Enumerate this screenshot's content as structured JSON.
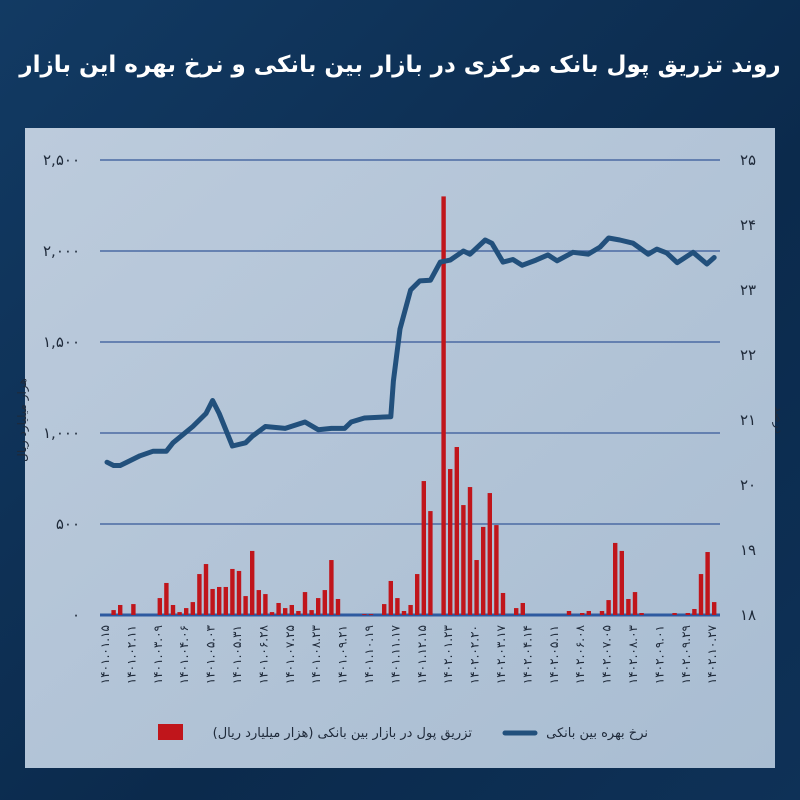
{
  "title": "روند تزریق پول بانک مرکزی در بازار بین بانکی و نرخ بهره این بازار",
  "chart_data": {
    "type": "bar+line",
    "title": "روند تزریق پول بانک مرکزی در بازار بین بانکی و نرخ بهره این بازار",
    "left_axis": {
      "label": "هزار میلیارد ریال",
      "range": [
        0,
        2500
      ],
      "ticks": [
        0,
        500,
        1000,
        1500,
        2000,
        2500
      ],
      "tick_labels": [
        "۰",
        "۵۰۰",
        "۱,۰۰۰",
        "۱,۵۰۰",
        "۲,۰۰۰",
        "۲,۵۰۰"
      ]
    },
    "right_axis": {
      "label": "درصد",
      "range": [
        18,
        25
      ],
      "ticks": [
        18,
        19,
        20,
        21,
        22,
        23,
        24,
        25
      ],
      "tick_labels": [
        "۱۸",
        "۱۹",
        "۲۰",
        "۲۱",
        "۲۲",
        "۲۳",
        "۲۴",
        "۲۵"
      ]
    },
    "x_tick_every": 4,
    "x_tick_labels": [
      "۱۴۰۱.۰۱.۱۵",
      "۱۴۰۱.۰۲.۱۱",
      "۱۴۰۱.۰۳.۰۹",
      "۱۴۰۱.۰۴.۰۶",
      "۱۴۰۱.۰۵.۰۳",
      "۱۴۰۱.۰۵.۳۱",
      "۱۴۰۱.۰۶.۲۸",
      "۱۴۰۱.۰۷.۲۵",
      "۱۴۰۱.۰۸.۲۳",
      "۱۴۰۱.۰۹.۲۱",
      "۱۴۰۱.۱۰.۱۹",
      "۱۴۰۱.۱۱.۱۷",
      "۱۴۰۱.۱۲.۱۵",
      "۱۴۰۲.۰۱.۲۳",
      "۱۴۰۲.۰۲.۲۰",
      "۱۴۰۲.۰۳.۱۷",
      "۱۴۰۲.۰۴.۱۴",
      "۱۴۰۲.۰۵.۱۱",
      "۱۴۰۲.۰۶.۰۸",
      "۱۴۰۲.۰۷.۰۵",
      "۱۴۰۲.۰۸.۰۳",
      "۱۴۰۲.۰۹.۰۱",
      "۱۴۰۲.۰۹.۲۹",
      "۱۴۰۲.۱۰.۲۷"
    ],
    "grid": true,
    "legend_placement": "bottom",
    "series": [
      {
        "name": "تزریق پول در بازار بین بانکی (هزار میلیارد ریال)",
        "type": "bar",
        "axis": "left",
        "color": "#c0151b",
        "values": [
          0,
          27,
          55,
          0,
          60,
          0,
          0,
          0,
          93,
          176,
          55,
          16,
          38,
          71,
          225,
          280,
          143,
          154,
          154,
          253,
          242,
          104,
          352,
          137,
          115,
          16,
          66,
          38,
          55,
          22,
          126,
          27,
          93,
          137,
          302,
          88,
          0,
          0,
          0,
          5,
          5,
          0,
          60,
          187,
          93,
          22,
          55,
          225,
          736,
          571,
          0,
          2300,
          802,
          923,
          604,
          703,
          302,
          484,
          670,
          494,
          121,
          0,
          38,
          66,
          0,
          0,
          0,
          0,
          0,
          0,
          22,
          0,
          11,
          22,
          0,
          22,
          82,
          396,
          352,
          88,
          126,
          11,
          0,
          0,
          0,
          0,
          11,
          0,
          11,
          33,
          225,
          346,
          71
        ]
      },
      {
        "name": "نرخ بهره بین بانکی",
        "type": "line",
        "axis": "right",
        "color": "#22507c",
        "points": [
          [
            0,
            20.35
          ],
          [
            1,
            20.3
          ],
          [
            2,
            20.3
          ],
          [
            5,
            20.45
          ],
          [
            7,
            20.52
          ],
          [
            9,
            20.52
          ],
          [
            10,
            20.65
          ],
          [
            13,
            20.9
          ],
          [
            15,
            21.1
          ],
          [
            16,
            21.3
          ],
          [
            17,
            21.1
          ],
          [
            19,
            20.6
          ],
          [
            21,
            20.65
          ],
          [
            22,
            20.75
          ],
          [
            24,
            20.9
          ],
          [
            27,
            20.87
          ],
          [
            30,
            20.97
          ],
          [
            32,
            20.85
          ],
          [
            34,
            20.87
          ],
          [
            36,
            20.87
          ],
          [
            37,
            20.97
          ],
          [
            39,
            21.03
          ],
          [
            43,
            21.05
          ],
          [
            43.4,
            21.6
          ],
          [
            44.4,
            22.4
          ],
          [
            46,
            23.0
          ],
          [
            47.4,
            23.14
          ],
          [
            49,
            23.15
          ],
          [
            50.5,
            23.43
          ],
          [
            52,
            23.46
          ],
          [
            54,
            23.6
          ],
          [
            55,
            23.55
          ],
          [
            57.3,
            23.77
          ],
          [
            58.3,
            23.72
          ],
          [
            60,
            23.43
          ],
          [
            61.5,
            23.47
          ],
          [
            62.9,
            23.38
          ],
          [
            65,
            23.46
          ],
          [
            66.8,
            23.54
          ],
          [
            68.2,
            23.45
          ],
          [
            70.6,
            23.58
          ],
          [
            72.9,
            23.55
          ],
          [
            74.7,
            23.66
          ],
          [
            76,
            23.8
          ],
          [
            77.7,
            23.77
          ],
          [
            79.7,
            23.72
          ],
          [
            82,
            23.55
          ],
          [
            83.3,
            23.63
          ],
          [
            84.8,
            23.57
          ],
          [
            86.4,
            23.42
          ],
          [
            88.8,
            23.58
          ],
          [
            90.9,
            23.4
          ],
          [
            92,
            23.5
          ]
        ]
      }
    ]
  }
}
